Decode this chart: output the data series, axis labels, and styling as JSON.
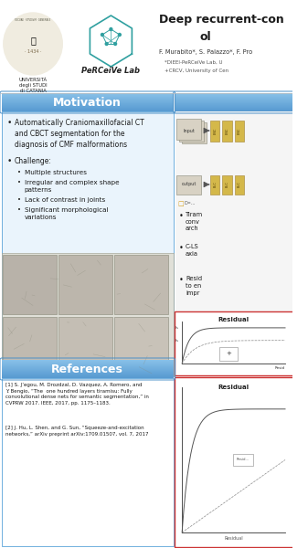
{
  "title_line1": "Deep recurrent-con",
  "title_line2": "ol",
  "authors": "F. Murabito*, S. Palazzo*, F. Pro",
  "affil1": "*DIEEI-PeRCeiVe Lab, U",
  "affil2": "+CRCV, University of Cen",
  "lab_name": "PeRCeiVe Lab",
  "univ_name": "UNIVERSITÀ\ndegli STUDI\ndi CATANIA",
  "motivation_title": "Motivation",
  "references_title": "References",
  "bullet1": "Automatically Craniomaxillofacial CT\nand CBCT segmentation for the\ndiagnosis of CMF malformations",
  "bullet2_main": "Challenge:",
  "sub_bullets": [
    "Multiple structures",
    "Irregular and complex shape\npatterns",
    "Lack of contrast in joints",
    "Significant morphological\nvariations"
  ],
  "right_bullets": [
    "Tiram\nconv\narch",
    "C-LS\naxia",
    "Resid\nto en\nimpr"
  ],
  "ref1": "[1] S. J’egou, M. Drozdzal, D. Vazquez, A. Romero, and\nY. Bengio, “The  one hundred layers tiramisu: Fully\nconvolutional dense nets for semantic segmentation,” in\nCVPRW 2017. IEEE, 2017, pp. 1175–1183.",
  "ref2": "[2] J. Hu, L. Shen, and G. Sun, “Squeeze-and-excitation\nnetworks,” arXiv preprint arXiv:1709.01507, vol. 7, 2017",
  "bg_white": "#ffffff",
  "bg_light": "#f2f2f2",
  "bar_blue_light": "#6ab0e0",
  "bar_blue_dark": "#4a90c8",
  "bar_grad_top": "#88c0e8",
  "bar_grad_bot": "#5598d0",
  "text_dark": "#1a1a1a",
  "text_med": "#333333",
  "text_light": "#555555",
  "yellow_box": "#d4b84a",
  "yellow_box_edge": "#b09030",
  "arch_box_fill": "#d8d0c0",
  "arch_box_edge": "#888888",
  "residual_border": "#cc3333",
  "border_blue": "#5ba3d9"
}
